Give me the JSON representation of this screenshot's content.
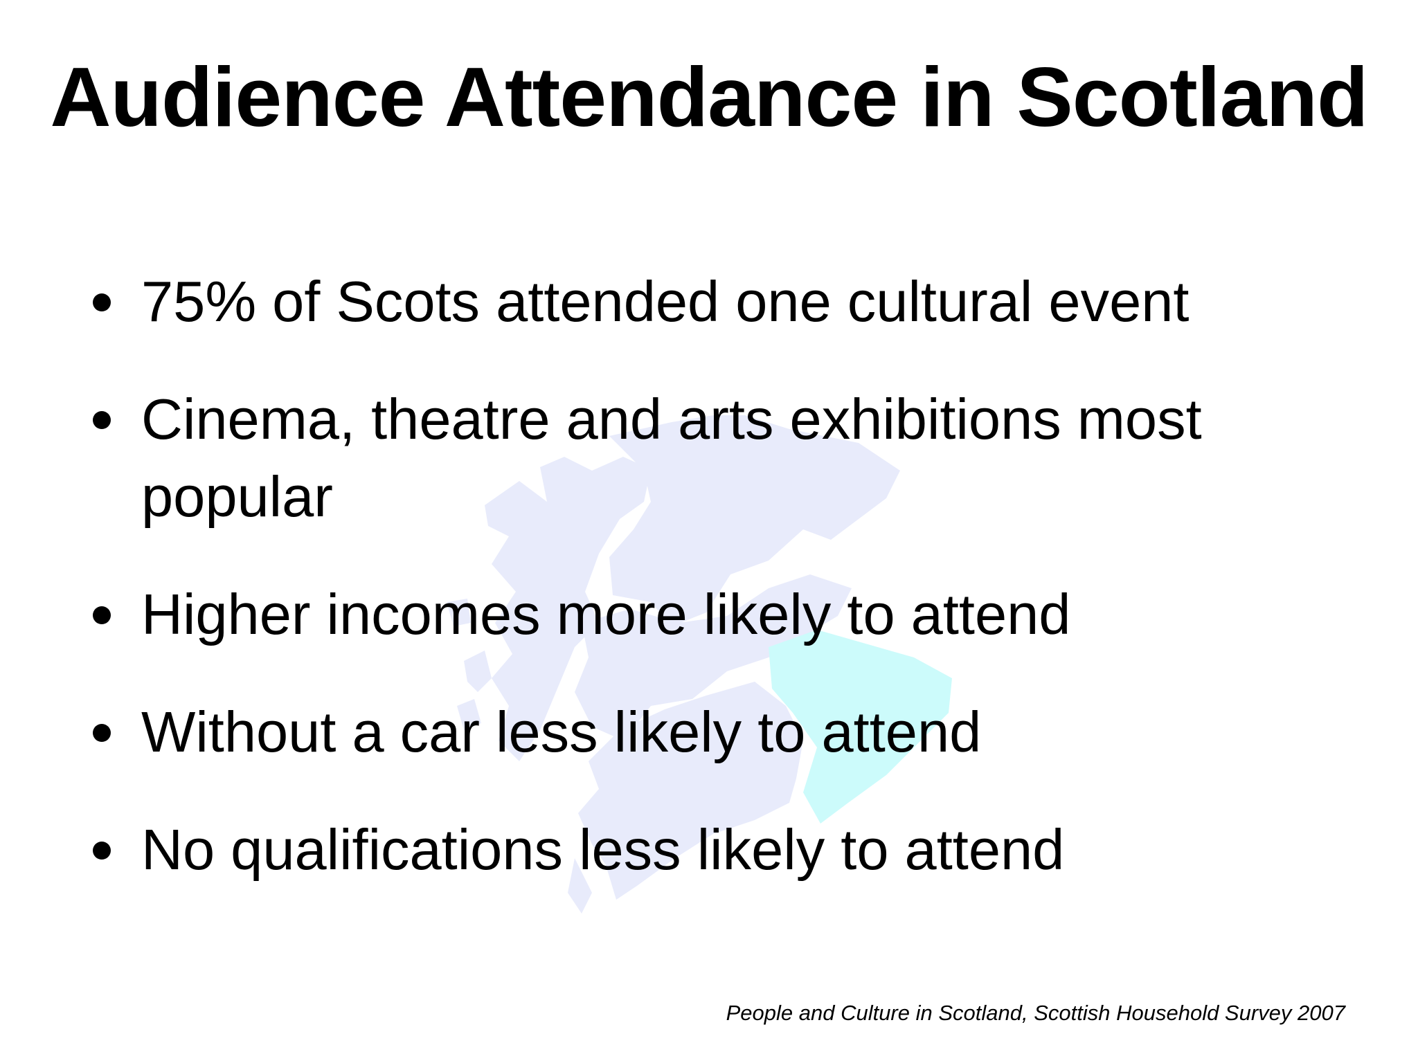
{
  "slide": {
    "title": "Audience Attendance in Scotland",
    "bullets": [
      "75% of Scots attended one cultural event",
      "Cinema, theatre and arts exhibitions most popular",
      "Higher incomes more likely to attend",
      "Without a car less likely to attend",
      "No qualifications less likely to attend"
    ],
    "source": "People and Culture in Scotland, Scottish Household Survey 2007"
  },
  "watermark": {
    "icon": "scotland-map-icon",
    "colors": {
      "land": "#e8ebfb",
      "highlight": "#ccfbfb"
    }
  }
}
